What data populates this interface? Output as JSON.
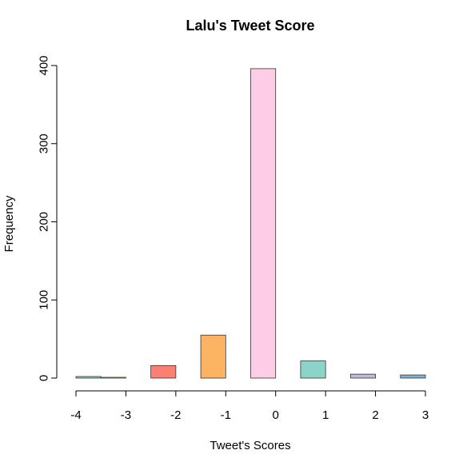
{
  "chart_data": {
    "type": "bar",
    "title": "Lalu's Tweet Score",
    "xlabel": "Tweet's Scores",
    "ylabel": "Frequency",
    "x_ticks": [
      "-4",
      "-3",
      "-2",
      "-1",
      "0",
      "1",
      "2",
      "3"
    ],
    "y_ticks": [
      "0",
      "100",
      "200",
      "300",
      "400"
    ],
    "ylim": [
      0,
      400
    ],
    "xlim": [
      -4,
      3
    ],
    "grid": false,
    "bars": [
      {
        "x_start": -4.0,
        "x_end": -3.5,
        "value": 2,
        "color": "#8DD3C7"
      },
      {
        "x_start": -3.5,
        "x_end": -3.0,
        "value": 1,
        "color": "#FFFFB3"
      },
      {
        "x_start": -3.0,
        "x_end": -2.5,
        "value": 0,
        "color": "#BEBADA"
      },
      {
        "x_start": -2.5,
        "x_end": -2.0,
        "value": 16,
        "color": "#FB8072"
      },
      {
        "x_start": -2.0,
        "x_end": -1.5,
        "value": 0,
        "color": "#80B1D3"
      },
      {
        "x_start": -1.5,
        "x_end": -1.0,
        "value": 55,
        "color": "#FDB462"
      },
      {
        "x_start": -1.0,
        "x_end": -0.5,
        "value": 0,
        "color": "#B3DE69"
      },
      {
        "x_start": -0.5,
        "x_end": 0.0,
        "value": 396,
        "color": "#FCCDE5"
      },
      {
        "x_start": 0.0,
        "x_end": 0.5,
        "value": 0,
        "color": "#D9D9D9"
      },
      {
        "x_start": 0.5,
        "x_end": 1.0,
        "value": 22,
        "color": "#8DD3C7"
      },
      {
        "x_start": 1.0,
        "x_end": 1.5,
        "value": 0,
        "color": "#FFFFB3"
      },
      {
        "x_start": 1.5,
        "x_end": 2.0,
        "value": 5,
        "color": "#BEBADA"
      },
      {
        "x_start": 2.0,
        "x_end": 2.5,
        "value": 0,
        "color": "#FB8072"
      },
      {
        "x_start": 2.5,
        "x_end": 3.0,
        "value": 4,
        "color": "#80B1D3"
      }
    ]
  }
}
